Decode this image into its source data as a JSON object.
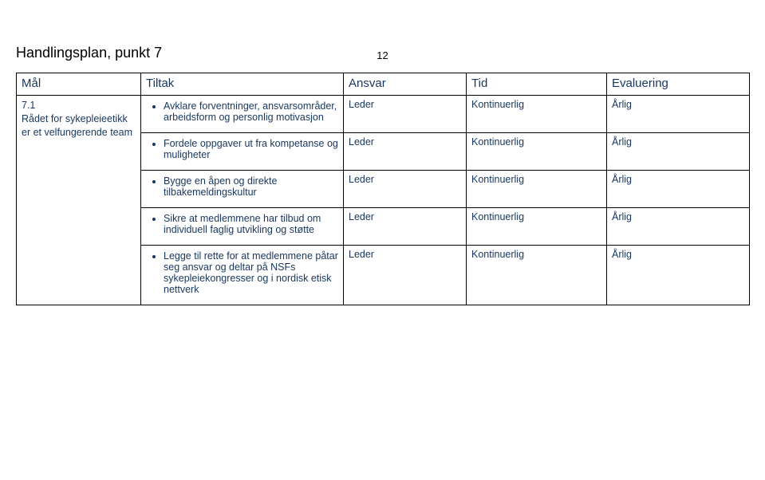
{
  "page_number": "12",
  "doc_title": "Handlingsplan, punkt 7",
  "colors": {
    "text": "#17365d",
    "border": "#000000",
    "background": "#ffffff"
  },
  "table": {
    "headers": [
      "Mål",
      "Tiltak",
      "Ansvar",
      "Tid",
      "Evaluering"
    ],
    "goal": {
      "number": "7.1",
      "text": "Rådet for sykepleieetikk er et velfungerende team"
    },
    "rows": [
      {
        "tiltak": "Avklare forventninger, ansvarsområder, arbeidsform og personlig motivasjon",
        "ansvar": "Leder",
        "tid": "Kontinuerlig",
        "evaluering": "Årlig"
      },
      {
        "tiltak": "Fordele oppgaver ut fra kompetanse og muligheter",
        "ansvar": "Leder",
        "tid": "Kontinuerlig",
        "evaluering": "Årlig"
      },
      {
        "tiltak": "Bygge en åpen og direkte tilbakemeldingskultur",
        "ansvar": "Leder",
        "tid": "Kontinuerlig",
        "evaluering": "Årlig"
      },
      {
        "tiltak": "Sikre at medlemmene har tilbud om individuell faglig utvikling og støtte",
        "ansvar": "Leder",
        "tid": "Kontinuerlig",
        "evaluering": "Årlig"
      },
      {
        "tiltak": "Legge til rette for at medlemmene påtar seg ansvar og deltar på NSFs sykepleiekongresser og i nordisk etisk nettverk",
        "ansvar": "Leder",
        "tid": "Kontinuerlig",
        "evaluering": "Årlig"
      }
    ]
  }
}
